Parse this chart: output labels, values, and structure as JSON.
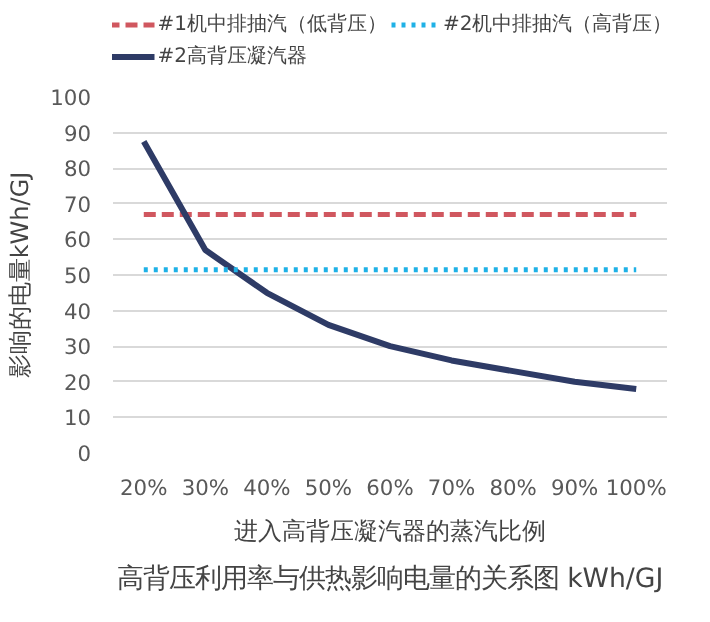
{
  "chart_data": {
    "type": "line",
    "categories": [
      "20%",
      "30%",
      "40%",
      "50%",
      "60%",
      "70%",
      "80%",
      "90%",
      "100%"
    ],
    "series": [
      {
        "name": "#1机中排抽汽（低背压）",
        "color": "#d0575f",
        "line_style": "dashed",
        "values": [
          67,
          67,
          67,
          67,
          67,
          67,
          67,
          67,
          67
        ]
      },
      {
        "name": "#2高背压凝汽器",
        "color": "#2e3b66",
        "line_style": "solid",
        "values": [
          87.5,
          57,
          45,
          36,
          30,
          26,
          23,
          20,
          18
        ]
      },
      {
        "name": "#2机中排抽汽（高背压）",
        "color": "#1fb1e6",
        "line_style": "dotted",
        "values": [
          51.5,
          51.5,
          51.5,
          51.5,
          51.5,
          51.5,
          51.5,
          51.5,
          51.5
        ]
      }
    ],
    "xlabel": "进入高背压凝汽器的蒸汽比例",
    "ylabel": "影响的电量kWh/GJ",
    "ylim": [
      0,
      100
    ],
    "yticks": [
      0,
      10,
      20,
      30,
      40,
      50,
      60,
      70,
      80,
      90,
      100
    ],
    "grid": "y",
    "legend": "top",
    "marker": "none",
    "annotations": [
      "高背压利用率与供热影响电量的关系图 kWh/GJ"
    ]
  }
}
